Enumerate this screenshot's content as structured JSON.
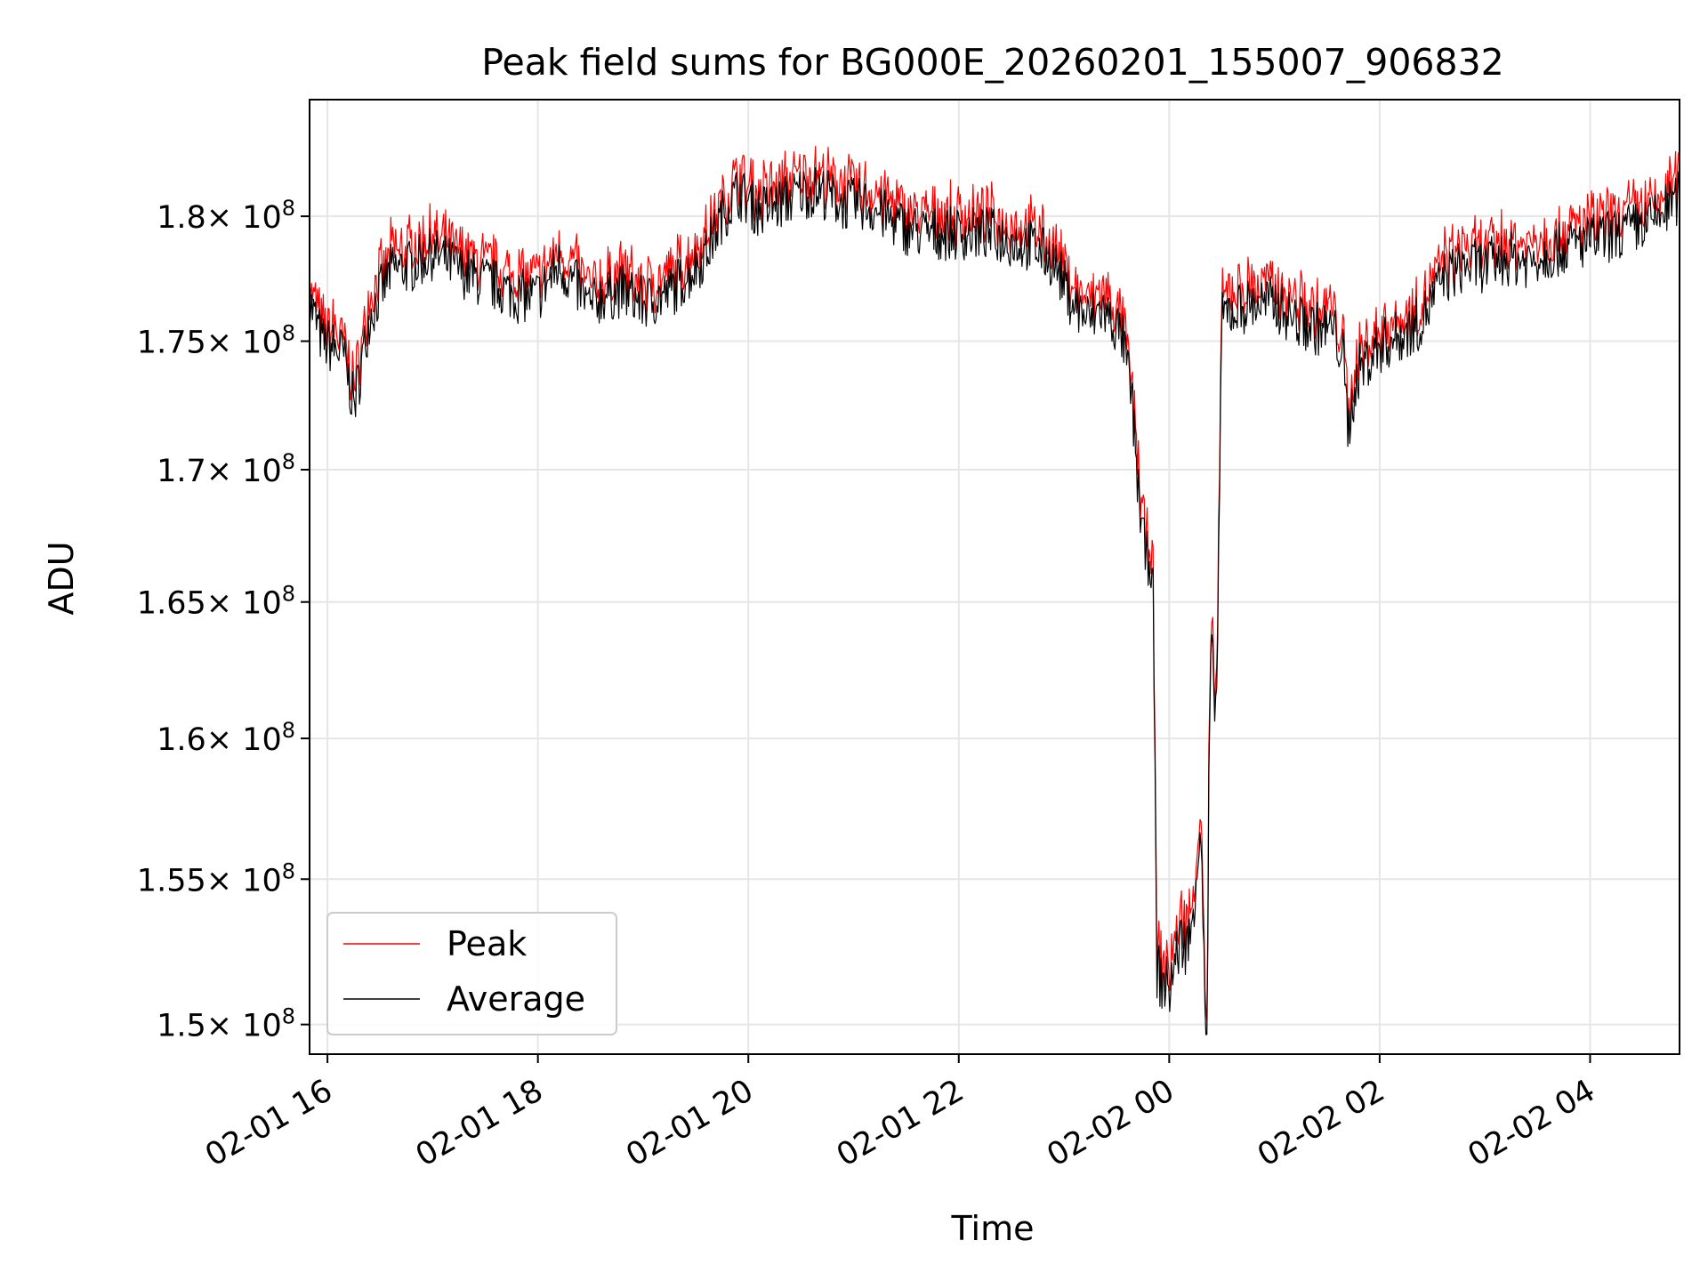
{
  "chart_data": {
    "type": "line",
    "title": "Peak field sums for BG000E_20260201_155007_906832",
    "xlabel": "Time",
    "ylabel": "ADU",
    "x_unit": "hours since 2026-02-01 00:00",
    "xlim": [
      15.83,
      28.85
    ],
    "ylim": [
      149000000,
      184800000
    ],
    "grid": true,
    "legend_position": "lower-left",
    "x_ticks": [
      {
        "value": 16,
        "label": "02-01 16"
      },
      {
        "value": 18,
        "label": "02-01 18"
      },
      {
        "value": 20,
        "label": "02-01 20"
      },
      {
        "value": 22,
        "label": "02-01 22"
      },
      {
        "value": 24,
        "label": "02-02 00"
      },
      {
        "value": 26,
        "label": "02-02 02"
      },
      {
        "value": 28,
        "label": "02-02 04"
      }
    ],
    "y_ticks": [
      {
        "value": 150000000,
        "mantissa": "1.5",
        "exponent": "8"
      },
      {
        "value": 155000000,
        "mantissa": "1.55",
        "exponent": "8"
      },
      {
        "value": 160000000,
        "mantissa": "1.6",
        "exponent": "8"
      },
      {
        "value": 165000000,
        "mantissa": "1.65",
        "exponent": "8"
      },
      {
        "value": 170000000,
        "mantissa": "1.7",
        "exponent": "8"
      },
      {
        "value": 175000000,
        "mantissa": "1.75",
        "exponent": "8"
      },
      {
        "value": 180000000,
        "mantissa": "1.8",
        "exponent": "8"
      }
    ],
    "tick_multiplier": "× 10",
    "series": [
      {
        "name": "Peak",
        "color": "#ff0000"
      },
      {
        "name": "Average",
        "color": "#000000"
      }
    ],
    "average_series": {
      "x": [
        15.83,
        15.95,
        16.15,
        16.25,
        16.3,
        16.4,
        16.6,
        16.8,
        17.0,
        17.2,
        17.4,
        17.6,
        17.8,
        18.0,
        18.2,
        18.4,
        18.5,
        18.6,
        18.8,
        19.0,
        19.2,
        19.4,
        19.6,
        19.75,
        19.9,
        20.1,
        20.3,
        20.5,
        20.7,
        20.9,
        21.1,
        21.3,
        21.5,
        21.7,
        21.9,
        22.1,
        22.3,
        22.5,
        22.7,
        22.9,
        23.05,
        23.15,
        23.25,
        23.35,
        23.45,
        23.55,
        23.6,
        23.65,
        23.7,
        23.75,
        23.78,
        23.82,
        23.85,
        23.88,
        23.92,
        24.0,
        24.1,
        24.2,
        24.25,
        24.3,
        24.33,
        24.36,
        24.38,
        24.4,
        24.45,
        24.5,
        24.55,
        24.6,
        24.8,
        25.0,
        25.2,
        25.4,
        25.55,
        25.65,
        25.7,
        25.75,
        25.8,
        26.0,
        26.2,
        26.4,
        26.6,
        26.8,
        27.0,
        27.2,
        27.4,
        27.6,
        27.8,
        28.0,
        28.2,
        28.4,
        28.6,
        28.85
      ],
      "values": [
        176600000,
        175000000,
        174500000,
        172500000,
        173500000,
        176000000,
        177800000,
        178000000,
        178500000,
        178000000,
        177500000,
        177200000,
        176800000,
        176800000,
        178000000,
        177000000,
        176300000,
        176800000,
        177000000,
        176500000,
        176800000,
        177500000,
        178500000,
        180000000,
        181000000,
        180200000,
        180500000,
        181000000,
        181000000,
        180500000,
        180500000,
        180000000,
        179500000,
        179300000,
        179300000,
        179300000,
        179300000,
        179000000,
        178800000,
        178200000,
        176800000,
        176200000,
        175800000,
        176300000,
        175800000,
        175200000,
        174000000,
        172500000,
        169500000,
        167500000,
        166500000,
        166800000,
        165000000,
        152000000,
        151500000,
        151200000,
        152800000,
        152800000,
        155000000,
        157000000,
        152000000,
        148500000,
        160000000,
        163000000,
        161000000,
        175800000,
        176200000,
        176200000,
        176500000,
        176500000,
        175800000,
        175500000,
        175500000,
        174500000,
        171500000,
        172800000,
        173800000,
        174800000,
        175200000,
        175800000,
        177500000,
        178000000,
        178000000,
        178300000,
        178200000,
        178500000,
        178800000,
        179000000,
        179200000,
        179500000,
        179800000,
        180800000
      ]
    }
  }
}
